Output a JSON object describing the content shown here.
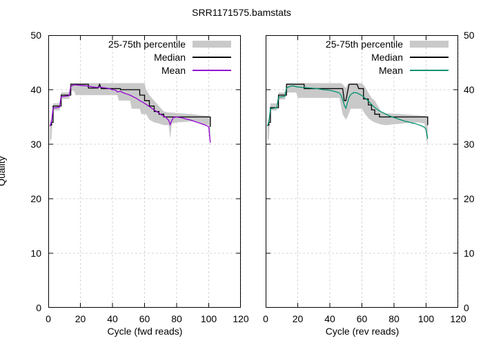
{
  "title": "SRR1171575.bamstats",
  "y_axis": {
    "label": "Quality",
    "min": 0,
    "max": 50,
    "ticks": [
      0,
      10,
      20,
      30,
      40,
      50
    ],
    "grid_ticks": [
      10,
      20,
      30,
      40
    ]
  },
  "x_axis": {
    "min": 0,
    "max": 120,
    "ticks": [
      0,
      20,
      40,
      60,
      80,
      100,
      120
    ],
    "grid_ticks": [
      20,
      40,
      60,
      80,
      100,
      120
    ]
  },
  "legend": {
    "percentile_label": "25-75th percentile",
    "median_label": "Median",
    "mean_label": "Mean"
  },
  "colors": {
    "band": "#c9c9c9",
    "median": "#000000",
    "mean_fwd": "#9400d3",
    "mean_rev": "#009270",
    "grid": "#d4d4d4",
    "frame": "#000000"
  },
  "chart_data": [
    {
      "type": "line",
      "xlabel": "Cycle (fwd reads)",
      "ylabel": "Quality",
      "xlim": [
        0,
        120
      ],
      "ylim": [
        0,
        50
      ],
      "legend_position": "top-right-inside",
      "grid": true,
      "series": [
        {
          "name": "25-75th percentile",
          "type": "band",
          "points": [
            [
              1,
              30.5,
              34.2
            ],
            [
              2,
              31,
              34.6
            ],
            [
              3,
              36.2,
              37.5
            ],
            [
              7,
              36.2,
              37.5
            ],
            [
              8,
              38.3,
              39.5
            ],
            [
              13,
              38.3,
              39.5
            ],
            [
              14,
              39.8,
              41.2
            ],
            [
              16,
              39.8,
              41.2
            ],
            [
              17,
              39,
              41.2
            ],
            [
              43,
              39,
              41.2
            ],
            [
              44,
              38,
              41.2
            ],
            [
              51,
              38,
              41.2
            ],
            [
              52,
              36.5,
              41.2
            ],
            [
              57,
              36.5,
              41.2
            ],
            [
              58,
              35.5,
              41.2
            ],
            [
              60,
              35.5,
              41.2
            ],
            [
              61,
              35.5,
              40
            ],
            [
              63,
              34.5,
              39
            ],
            [
              66,
              34,
              38
            ],
            [
              69,
              33.8,
              37
            ],
            [
              72,
              33.5,
              36
            ],
            [
              75,
              33.5,
              35.8
            ],
            [
              76,
              31,
              35.8
            ],
            [
              77,
              33.8,
              35.8
            ],
            [
              80,
              34,
              35.7
            ],
            [
              90,
              34.2,
              35.5
            ],
            [
              95,
              33.8,
              35.3
            ],
            [
              100,
              33.5,
              35.2
            ],
            [
              101,
              29.5,
              35
            ]
          ]
        },
        {
          "name": "Median",
          "type": "line",
          "color_key": "median",
          "points": [
            [
              1,
              33.5
            ],
            [
              2,
              33.5
            ],
            [
              2,
              34
            ],
            [
              3,
              34
            ],
            [
              3,
              37
            ],
            [
              7,
              37
            ],
            [
              8,
              37
            ],
            [
              8,
              39
            ],
            [
              13,
              39
            ],
            [
              14,
              39
            ],
            [
              14,
              41
            ],
            [
              24,
              41
            ],
            [
              25,
              41
            ],
            [
              25,
              40.3
            ],
            [
              31,
              40.3
            ],
            [
              32,
              41
            ],
            [
              33,
              40.2
            ],
            [
              45,
              40.2
            ],
            [
              45,
              40
            ],
            [
              57,
              40
            ],
            [
              57,
              39
            ],
            [
              60,
              39
            ],
            [
              60,
              38
            ],
            [
              63,
              38
            ],
            [
              63,
              37
            ],
            [
              66,
              37
            ],
            [
              66,
              36
            ],
            [
              69,
              36
            ],
            [
              69,
              35.5
            ],
            [
              72,
              35.5
            ],
            [
              72,
              35
            ],
            [
              101,
              35
            ],
            [
              101,
              33.2
            ]
          ]
        },
        {
          "name": "Mean",
          "type": "line",
          "color_key": "mean_fwd",
          "points": [
            [
              1,
              33.3
            ],
            [
              2,
              34.1
            ],
            [
              3,
              36.6
            ],
            [
              7,
              36.8
            ],
            [
              8,
              38.7
            ],
            [
              13,
              38.9
            ],
            [
              14,
              40.6
            ],
            [
              16,
              40.9
            ],
            [
              20,
              40.8
            ],
            [
              24,
              40.7
            ],
            [
              28,
              40.5
            ],
            [
              31,
              40.4
            ],
            [
              32,
              40.5
            ],
            [
              34,
              40.4
            ],
            [
              36,
              40.3
            ],
            [
              38,
              40.2
            ],
            [
              40,
              40
            ],
            [
              42,
              39.9
            ],
            [
              43,
              39.6
            ],
            [
              45,
              39.7
            ],
            [
              47,
              39.4
            ],
            [
              49,
              39.2
            ],
            [
              51,
              39
            ],
            [
              53,
              38.7
            ],
            [
              55,
              38.4
            ],
            [
              57,
              38
            ],
            [
              59,
              37.7
            ],
            [
              61,
              37.3
            ],
            [
              63,
              36.9
            ],
            [
              65,
              36.5
            ],
            [
              67,
              36.1
            ],
            [
              69,
              35.7
            ],
            [
              71,
              35.3
            ],
            [
              73,
              35
            ],
            [
              75,
              34.4
            ],
            [
              76,
              33.6
            ],
            [
              77,
              34.4
            ],
            [
              78,
              34.9
            ],
            [
              80,
              35
            ],
            [
              82,
              34.9
            ],
            [
              84,
              34.8
            ],
            [
              86,
              34.6
            ],
            [
              88,
              34.5
            ],
            [
              90,
              34.3
            ],
            [
              92,
              34.1
            ],
            [
              94,
              33.9
            ],
            [
              96,
              33.7
            ],
            [
              98,
              33.5
            ],
            [
              100,
              33.2
            ],
            [
              101,
              30.3
            ]
          ]
        }
      ]
    },
    {
      "type": "line",
      "xlabel": "Cycle (rev reads)",
      "ylabel": "Quality",
      "xlim": [
        0,
        120
      ],
      "ylim": [
        0,
        50
      ],
      "legend_position": "top-right-inside",
      "grid": true,
      "series": [
        {
          "name": "25-75th percentile",
          "type": "band",
          "points": [
            [
              1,
              30.5,
              34.2
            ],
            [
              2,
              31,
              34.6
            ],
            [
              3,
              36.2,
              37.5
            ],
            [
              7,
              36.2,
              37.5
            ],
            [
              8,
              38.2,
              39.5
            ],
            [
              12,
              38.2,
              39.5
            ],
            [
              13,
              39.5,
              41.2
            ],
            [
              19,
              39.5,
              41.2
            ],
            [
              20,
              38.5,
              41.2
            ],
            [
              46,
              38.5,
              41.2
            ],
            [
              47,
              37,
              41.2
            ],
            [
              48,
              35.5,
              41
            ],
            [
              50,
              34.5,
              40.3
            ],
            [
              51,
              35,
              41
            ],
            [
              53,
              36.5,
              41.2
            ],
            [
              60,
              36.5,
              41.2
            ],
            [
              62,
              35.5,
              40.5
            ],
            [
              64,
              34.8,
              39.5
            ],
            [
              66,
              34.3,
              38.5
            ],
            [
              68,
              34,
              38
            ],
            [
              70,
              33.8,
              37
            ],
            [
              72,
              33.6,
              36
            ],
            [
              75,
              33.5,
              35.7
            ],
            [
              85,
              33.8,
              35.5
            ],
            [
              95,
              34,
              35.3
            ],
            [
              99,
              33.8,
              35.2
            ],
            [
              101,
              29.5,
              35
            ]
          ]
        },
        {
          "name": "Median",
          "type": "line",
          "color_key": "median",
          "points": [
            [
              1,
              33.5
            ],
            [
              2,
              33.5
            ],
            [
              2,
              34
            ],
            [
              3,
              34
            ],
            [
              3,
              36.7
            ],
            [
              7,
              36.7
            ],
            [
              8,
              36.7
            ],
            [
              8,
              39
            ],
            [
              12,
              39
            ],
            [
              13,
              39
            ],
            [
              13,
              41
            ],
            [
              23,
              41
            ],
            [
              24,
              41
            ],
            [
              24,
              40.2
            ],
            [
              48,
              40.2
            ],
            [
              49,
              38
            ],
            [
              50,
              38
            ],
            [
              52,
              41
            ],
            [
              57,
              41
            ],
            [
              58,
              40.2
            ],
            [
              61,
              40.2
            ],
            [
              61,
              38.3
            ],
            [
              64,
              38.3
            ],
            [
              64,
              37.2
            ],
            [
              66,
              37.2
            ],
            [
              66,
              36.3
            ],
            [
              68,
              36.3
            ],
            [
              68,
              35.5
            ],
            [
              71,
              35.5
            ],
            [
              71,
              35
            ],
            [
              100,
              35
            ],
            [
              101,
              35
            ],
            [
              101,
              33.5
            ]
          ]
        },
        {
          "name": "Mean",
          "type": "line",
          "color_key": "mean_rev",
          "points": [
            [
              1,
              33.3
            ],
            [
              2,
              34
            ],
            [
              3,
              36.5
            ],
            [
              7,
              36.7
            ],
            [
              8,
              38.6
            ],
            [
              12,
              38.8
            ],
            [
              13,
              40.3
            ],
            [
              15,
              40.6
            ],
            [
              17,
              40.7
            ],
            [
              20,
              40.5
            ],
            [
              24,
              40.4
            ],
            [
              28,
              40.3
            ],
            [
              32,
              40.2
            ],
            [
              36,
              40
            ],
            [
              40,
              39.9
            ],
            [
              44,
              39.6
            ],
            [
              46,
              39.4
            ],
            [
              47,
              39
            ],
            [
              48,
              38.2
            ],
            [
              49,
              37.2
            ],
            [
              50,
              36.6
            ],
            [
              51,
              37.6
            ],
            [
              52,
              38.6
            ],
            [
              53,
              39.1
            ],
            [
              55,
              39.5
            ],
            [
              57,
              39.4
            ],
            [
              59,
              39.1
            ],
            [
              61,
              38.7
            ],
            [
              63,
              38.2
            ],
            [
              65,
              37.6
            ],
            [
              67,
              37
            ],
            [
              69,
              36.5
            ],
            [
              71,
              36.1
            ],
            [
              73,
              35.8
            ],
            [
              75,
              35.5
            ],
            [
              77,
              35.2
            ],
            [
              79,
              35
            ],
            [
              81,
              34.8
            ],
            [
              83,
              34.6
            ],
            [
              85,
              34.4
            ],
            [
              87,
              34.2
            ],
            [
              89,
              34.1
            ],
            [
              91,
              33.9
            ],
            [
              93,
              33.8
            ],
            [
              95,
              33.6
            ],
            [
              97,
              33.4
            ],
            [
              99,
              33.1
            ],
            [
              100,
              32.7
            ],
            [
              101,
              31
            ]
          ]
        }
      ]
    }
  ]
}
